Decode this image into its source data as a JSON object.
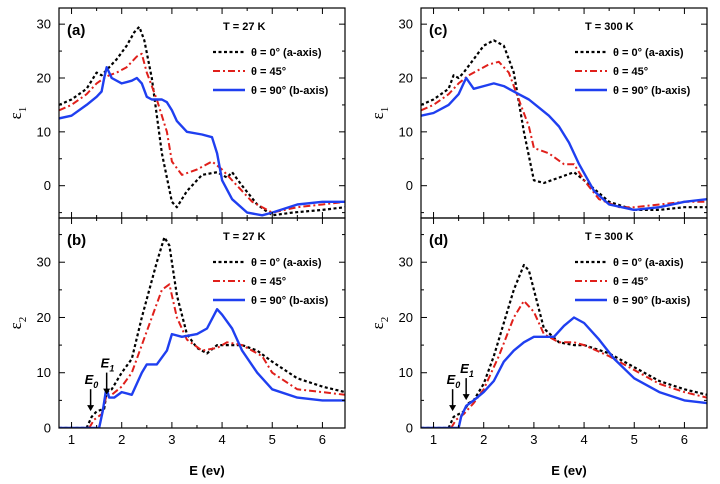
{
  "figure": {
    "xlabel": "E (ev)",
    "colors": {
      "black": "#000000",
      "red": "#e0201b",
      "blue": "#1f3ff0"
    },
    "left_temperature": "T = 27 K",
    "right_temperature": "T = 300 K"
  },
  "chart_data": [
    {
      "panel": "(a)",
      "type": "line",
      "temperature": "T = 27 K",
      "ylabel": "ε",
      "ylabel_sub": "1",
      "xlim": [
        0.75,
        6.45
      ],
      "ylim": [
        -6,
        33
      ],
      "xticks": [
        1,
        2,
        3,
        4,
        5,
        6
      ],
      "yticks": [
        0,
        10,
        20,
        30
      ],
      "series": [
        {
          "name": "θ = 0° (a-axis)",
          "color": "#000000",
          "style": "dotted",
          "x": [
            0.75,
            1.0,
            1.3,
            1.5,
            1.6,
            1.7,
            1.9,
            2.1,
            2.25,
            2.35,
            2.45,
            2.6,
            2.8,
            3.0,
            3.1,
            3.3,
            3.6,
            3.9,
            4.1,
            4.2,
            4.4,
            4.7,
            5.0,
            5.4,
            6.0,
            6.45
          ],
          "y": [
            15,
            16,
            18,
            21,
            20.5,
            21.5,
            23.5,
            26,
            28.5,
            29.5,
            27,
            20,
            6,
            -3,
            -4,
            -1,
            2,
            2.5,
            1.5,
            2.5,
            0,
            -3.5,
            -5.5,
            -5,
            -4.5,
            -4
          ]
        },
        {
          "name": "θ = 45°",
          "color": "#e0201b",
          "style": "dashdot",
          "x": [
            0.75,
            1.0,
            1.3,
            1.5,
            1.65,
            1.75,
            1.9,
            2.1,
            2.3,
            2.4,
            2.5,
            2.7,
            2.9,
            3.0,
            3.2,
            3.5,
            3.8,
            4.0,
            4.3,
            4.6,
            5.0,
            5.5,
            6.0,
            6.45
          ],
          "y": [
            14,
            15,
            17,
            19,
            20,
            20.5,
            21,
            22,
            24,
            24.5,
            21,
            16,
            10,
            4.5,
            2,
            3,
            4.5,
            3,
            0,
            -3,
            -5,
            -4,
            -3.5,
            -3
          ]
        },
        {
          "name": "θ = 90° (b-axis)",
          "color": "#1f3ff0",
          "style": "solid",
          "x": [
            0.75,
            1.0,
            1.3,
            1.5,
            1.6,
            1.65,
            1.7,
            1.8,
            2.0,
            2.2,
            2.3,
            2.4,
            2.5,
            2.6,
            2.8,
            2.9,
            3.0,
            3.1,
            3.3,
            3.6,
            3.8,
            3.9,
            4.0,
            4.2,
            4.5,
            4.8,
            5.0,
            5.5,
            6.0,
            6.45
          ],
          "y": [
            12.5,
            13,
            15,
            16.5,
            17.5,
            20,
            22,
            20,
            19,
            19.5,
            20,
            19,
            16.5,
            16,
            16,
            15.5,
            14,
            12,
            10,
            9.5,
            9,
            6,
            1,
            -2.5,
            -5,
            -5.5,
            -5,
            -3.5,
            -3,
            -3
          ]
        }
      ]
    },
    {
      "panel": "(b)",
      "type": "line",
      "temperature": "T = 27 K",
      "ylabel": "ε",
      "ylabel_sub": "2",
      "xlim": [
        0.75,
        6.45
      ],
      "ylim": [
        0,
        38
      ],
      "xticks": [
        1,
        2,
        3,
        4,
        5,
        6
      ],
      "yticks": [
        0,
        10,
        20,
        30
      ],
      "annotations": [
        {
          "text": "E",
          "sub": "0",
          "x": 1.38,
          "y": 2.5
        },
        {
          "text": "E",
          "sub": "1",
          "x": 1.7,
          "y": 5.5
        }
      ],
      "series": [
        {
          "name": "θ = 0° (a-axis)",
          "color": "#000000",
          "style": "dotted",
          "x": [
            0.75,
            1.3,
            1.4,
            1.5,
            1.65,
            1.7,
            1.8,
            2.0,
            2.2,
            2.4,
            2.55,
            2.7,
            2.85,
            2.95,
            3.1,
            3.3,
            3.5,
            3.7,
            3.9,
            4.1,
            4.4,
            4.7,
            5.0,
            5.5,
            6.0,
            6.45
          ],
          "y": [
            0,
            0,
            2,
            3,
            3.5,
            6.5,
            7,
            10,
            12.5,
            20,
            25,
            30,
            34.5,
            33,
            24,
            17,
            14.5,
            13.5,
            15,
            15,
            15,
            14,
            12,
            9,
            7.5,
            6.5
          ]
        },
        {
          "name": "θ = 45°",
          "color": "#e0201b",
          "style": "dashdot",
          "x": [
            0.75,
            1.35,
            1.45,
            1.6,
            1.7,
            1.8,
            2.0,
            2.2,
            2.4,
            2.6,
            2.8,
            2.95,
            3.1,
            3.3,
            3.6,
            3.9,
            4.1,
            4.4,
            4.8,
            5.0,
            5.5,
            6.0,
            6.45
          ],
          "y": [
            0,
            0,
            1.5,
            2.5,
            6,
            6,
            7.5,
            10,
            15,
            20,
            25,
            26,
            20,
            16,
            14,
            14.5,
            15.5,
            15,
            13,
            10,
            7,
            6.5,
            6
          ]
        },
        {
          "name": "θ = 90° (b-axis)",
          "color": "#1f3ff0",
          "style": "solid",
          "x": [
            0.75,
            1.55,
            1.62,
            1.68,
            1.7,
            1.75,
            1.85,
            2.0,
            2.2,
            2.4,
            2.5,
            2.7,
            2.9,
            3.0,
            3.2,
            3.5,
            3.7,
            3.9,
            4.0,
            4.2,
            4.4,
            4.7,
            5.0,
            5.5,
            6.0,
            6.45
          ],
          "y": [
            0,
            0,
            3,
            6.5,
            7,
            5.5,
            5.5,
            6.5,
            6,
            10,
            11.5,
            11.5,
            14,
            17,
            16.5,
            17,
            18,
            21.5,
            20.5,
            18,
            14,
            10,
            7,
            5.5,
            5,
            5
          ]
        }
      ]
    },
    {
      "panel": "(c)",
      "type": "line",
      "temperature": "T = 300 K",
      "ylabel": "ε",
      "ylabel_sub": "1",
      "xlim": [
        0.75,
        6.45
      ],
      "ylim": [
        -6,
        33
      ],
      "xticks": [
        1,
        2,
        3,
        4,
        5,
        6
      ],
      "yticks": [
        0,
        10,
        20,
        30
      ],
      "series": [
        {
          "name": "θ = 0° (a-axis)",
          "color": "#000000",
          "style": "dotted",
          "x": [
            0.75,
            1.0,
            1.3,
            1.4,
            1.5,
            1.6,
            1.8,
            2.0,
            2.2,
            2.4,
            2.6,
            2.8,
            3.0,
            3.2,
            3.5,
            3.8,
            4.0,
            4.5,
            5.0,
            5.5,
            6.0,
            6.45
          ],
          "y": [
            15,
            16,
            18,
            20.5,
            20,
            21,
            23.5,
            26,
            27,
            26,
            21,
            10,
            1,
            0.5,
            1.5,
            2.5,
            1,
            -3,
            -4.5,
            -4.5,
            -4,
            -4
          ]
        },
        {
          "name": "θ = 45°",
          "color": "#e0201b",
          "style": "dashdot",
          "x": [
            0.75,
            1.0,
            1.3,
            1.5,
            1.7,
            1.9,
            2.1,
            2.3,
            2.5,
            2.7,
            2.9,
            3.0,
            3.3,
            3.6,
            3.8,
            4.0,
            4.3,
            4.7,
            5.0,
            5.5,
            6.0,
            6.45
          ],
          "y": [
            14,
            15,
            17,
            19,
            20.5,
            21.5,
            22.5,
            23,
            21,
            16,
            11,
            7,
            6,
            4,
            4,
            1,
            -2.5,
            -4,
            -4,
            -3.5,
            -3,
            -3
          ]
        },
        {
          "name": "θ = 90° (b-axis)",
          "color": "#1f3ff0",
          "style": "solid",
          "x": [
            0.75,
            1.0,
            1.3,
            1.5,
            1.6,
            1.65,
            1.8,
            2.0,
            2.2,
            2.4,
            2.7,
            2.9,
            3.1,
            3.3,
            3.5,
            3.7,
            3.9,
            4.2,
            4.5,
            5.0,
            5.5,
            6.0,
            6.45
          ],
          "y": [
            13,
            13.5,
            15,
            17,
            19,
            20,
            18,
            18.5,
            19,
            18.5,
            17,
            16,
            14.5,
            13,
            11,
            8,
            4,
            -1,
            -3.5,
            -4.5,
            -4,
            -3,
            -2.5
          ]
        }
      ]
    },
    {
      "panel": "(d)",
      "type": "line",
      "temperature": "T = 300 K",
      "ylabel": "ε",
      "ylabel_sub": "2",
      "xlim": [
        0.75,
        6.45
      ],
      "ylim": [
        0,
        38
      ],
      "xticks": [
        1,
        2,
        3,
        4,
        5,
        6
      ],
      "yticks": [
        0,
        10,
        20,
        30
      ],
      "annotations": [
        {
          "text": "E",
          "sub": "0",
          "x": 1.38,
          "y": 2.5
        },
        {
          "text": "E",
          "sub": "1",
          "x": 1.65,
          "y": 4.5
        }
      ],
      "series": [
        {
          "name": "θ = 0° (a-axis)",
          "color": "#000000",
          "style": "dotted",
          "x": [
            0.75,
            1.3,
            1.4,
            1.5,
            1.6,
            1.7,
            1.8,
            2.0,
            2.2,
            2.4,
            2.6,
            2.8,
            2.9,
            3.0,
            3.2,
            3.5,
            3.8,
            4.0,
            4.5,
            5.0,
            5.5,
            6.0,
            6.45
          ],
          "y": [
            0,
            0,
            2,
            2.5,
            3,
            4.5,
            5,
            8,
            13,
            19,
            25,
            29.5,
            28.5,
            25,
            18,
            15.5,
            15,
            15,
            13.5,
            11,
            8.5,
            7,
            6
          ]
        },
        {
          "name": "θ = 45°",
          "color": "#e0201b",
          "style": "dashdot",
          "x": [
            0.75,
            1.35,
            1.45,
            1.6,
            1.8,
            2.0,
            2.3,
            2.6,
            2.8,
            3.0,
            3.2,
            3.5,
            3.8,
            4.0,
            4.5,
            5.0,
            5.5,
            6.0,
            6.45
          ],
          "y": [
            0,
            0,
            1.5,
            2.5,
            4.5,
            7,
            13,
            20,
            23,
            21,
            17,
            15.5,
            15.5,
            15,
            13,
            10.5,
            8,
            6.5,
            5.5
          ]
        },
        {
          "name": "θ = 90° (b-axis)",
          "color": "#1f3ff0",
          "style": "solid",
          "x": [
            0.75,
            1.5,
            1.55,
            1.65,
            1.8,
            2.0,
            2.2,
            2.4,
            2.6,
            2.8,
            3.0,
            3.2,
            3.4,
            3.6,
            3.8,
            4.0,
            4.3,
            4.6,
            5.0,
            5.5,
            6.0,
            6.45
          ],
          "y": [
            0,
            0,
            2,
            4,
            5,
            6.5,
            8.5,
            12,
            14,
            15.5,
            16.5,
            16.5,
            16.5,
            18.5,
            20,
            19,
            16,
            12.5,
            9,
            6.5,
            5,
            4.5
          ]
        }
      ]
    }
  ]
}
